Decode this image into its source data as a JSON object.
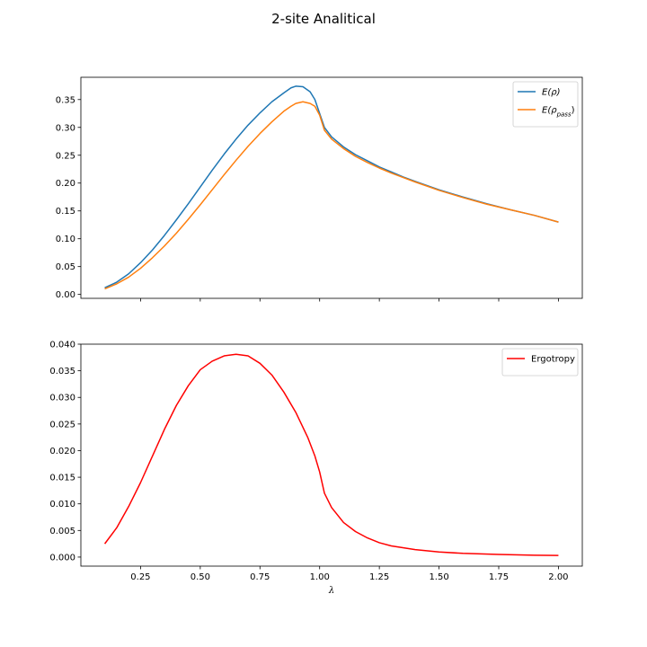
{
  "figure": {
    "title": "2-site Analitical"
  },
  "chart_data": [
    {
      "type": "line",
      "title": "",
      "xlabel": "",
      "ylabel": "",
      "xlim": [
        0.0,
        2.1
      ],
      "ylim": [
        -0.007,
        0.39
      ],
      "x_ticks": [
        0.25,
        0.5,
        0.75,
        1.0,
        1.25,
        1.5,
        1.75,
        2.0
      ],
      "x_tick_labels_visible": false,
      "y_ticks": [
        0.0,
        0.05,
        0.1,
        0.15,
        0.2,
        0.25,
        0.3,
        0.35
      ],
      "y_tick_labels": [
        "0.00",
        "0.05",
        "0.10",
        "0.15",
        "0.20",
        "0.25",
        "0.30",
        "0.35"
      ],
      "grid": false,
      "legend_position": "top-right",
      "series": [
        {
          "name": "E(ρ)",
          "legend_main": "E(ρ)",
          "legend_sub": "",
          "color": "#1f77b4",
          "points": [
            [
              0.1,
              0.012
            ],
            [
              0.15,
              0.022
            ],
            [
              0.2,
              0.037
            ],
            [
              0.25,
              0.057
            ],
            [
              0.3,
              0.08
            ],
            [
              0.35,
              0.106
            ],
            [
              0.4,
              0.134
            ],
            [
              0.45,
              0.163
            ],
            [
              0.5,
              0.193
            ],
            [
              0.55,
              0.223
            ],
            [
              0.6,
              0.252
            ],
            [
              0.65,
              0.279
            ],
            [
              0.7,
              0.304
            ],
            [
              0.75,
              0.326
            ],
            [
              0.8,
              0.346
            ],
            [
              0.85,
              0.362
            ],
            [
              0.88,
              0.371
            ],
            [
              0.9,
              0.374
            ],
            [
              0.93,
              0.373
            ],
            [
              0.96,
              0.364
            ],
            [
              0.98,
              0.35
            ],
            [
              1.0,
              0.325
            ],
            [
              1.02,
              0.3
            ],
            [
              1.05,
              0.283
            ],
            [
              1.1,
              0.265
            ],
            [
              1.15,
              0.251
            ],
            [
              1.2,
              0.24
            ],
            [
              1.25,
              0.229
            ],
            [
              1.3,
              0.22
            ],
            [
              1.35,
              0.211
            ],
            [
              1.4,
              0.203
            ],
            [
              1.5,
              0.188
            ],
            [
              1.6,
              0.175
            ],
            [
              1.7,
              0.163
            ],
            [
              1.8,
              0.152
            ],
            [
              1.9,
              0.142
            ],
            [
              2.0,
              0.13
            ]
          ]
        },
        {
          "name": "E(ρ_pass)",
          "legend_main": "E(ρ",
          "legend_sub": "pass",
          "legend_end": ")",
          "color": "#ff7f0e",
          "points": [
            [
              0.1,
              0.01
            ],
            [
              0.15,
              0.019
            ],
            [
              0.2,
              0.031
            ],
            [
              0.25,
              0.047
            ],
            [
              0.3,
              0.066
            ],
            [
              0.35,
              0.087
            ],
            [
              0.4,
              0.11
            ],
            [
              0.45,
              0.135
            ],
            [
              0.5,
              0.161
            ],
            [
              0.55,
              0.188
            ],
            [
              0.6,
              0.215
            ],
            [
              0.65,
              0.241
            ],
            [
              0.7,
              0.266
            ],
            [
              0.75,
              0.289
            ],
            [
              0.8,
              0.31
            ],
            [
              0.85,
              0.329
            ],
            [
              0.88,
              0.338
            ],
            [
              0.9,
              0.343
            ],
            [
              0.93,
              0.346
            ],
            [
              0.96,
              0.343
            ],
            [
              0.98,
              0.338
            ],
            [
              1.0,
              0.322
            ],
            [
              1.02,
              0.295
            ],
            [
              1.05,
              0.279
            ],
            [
              1.1,
              0.262
            ],
            [
              1.15,
              0.248
            ],
            [
              1.2,
              0.237
            ],
            [
              1.25,
              0.227
            ],
            [
              1.3,
              0.218
            ],
            [
              1.35,
              0.21
            ],
            [
              1.4,
              0.202
            ],
            [
              1.5,
              0.187
            ],
            [
              1.6,
              0.174
            ],
            [
              1.7,
              0.162
            ],
            [
              1.8,
              0.152
            ],
            [
              1.9,
              0.142
            ],
            [
              2.0,
              0.13
            ]
          ]
        }
      ]
    },
    {
      "type": "line",
      "title": "",
      "xlabel": "λ",
      "ylabel": "",
      "xlim": [
        0.0,
        2.1
      ],
      "ylim": [
        -0.0017,
        0.04
      ],
      "x_ticks": [
        0.25,
        0.5,
        0.75,
        1.0,
        1.25,
        1.5,
        1.75,
        2.0
      ],
      "x_tick_labels": [
        "0.25",
        "0.50",
        "0.75",
        "1.00",
        "1.25",
        "1.50",
        "1.75",
        "2.00"
      ],
      "y_ticks": [
        0.0,
        0.005,
        0.01,
        0.015,
        0.02,
        0.025,
        0.03,
        0.035,
        0.04
      ],
      "y_tick_labels": [
        "0.000",
        "0.005",
        "0.010",
        "0.015",
        "0.020",
        "0.025",
        "0.030",
        "0.035",
        "0.040"
      ],
      "grid": false,
      "legend_position": "top-right",
      "series": [
        {
          "name": "Ergotropy",
          "legend_main": "Ergotropy",
          "legend_sub": "",
          "color": "#ff0000",
          "points": [
            [
              0.1,
              0.0025
            ],
            [
              0.15,
              0.0055
            ],
            [
              0.2,
              0.0095
            ],
            [
              0.25,
              0.014
            ],
            [
              0.3,
              0.019
            ],
            [
              0.35,
              0.024
            ],
            [
              0.4,
              0.0285
            ],
            [
              0.45,
              0.0322
            ],
            [
              0.5,
              0.0352
            ],
            [
              0.55,
              0.0368
            ],
            [
              0.6,
              0.0378
            ],
            [
              0.65,
              0.0381
            ],
            [
              0.7,
              0.0378
            ],
            [
              0.75,
              0.0364
            ],
            [
              0.8,
              0.0342
            ],
            [
              0.85,
              0.031
            ],
            [
              0.9,
              0.0272
            ],
            [
              0.95,
              0.0225
            ],
            [
              0.98,
              0.019
            ],
            [
              1.0,
              0.016
            ],
            [
              1.02,
              0.012
            ],
            [
              1.05,
              0.0093
            ],
            [
              1.1,
              0.0065
            ],
            [
              1.15,
              0.0048
            ],
            [
              1.2,
              0.0036
            ],
            [
              1.25,
              0.0027
            ],
            [
              1.3,
              0.0021
            ],
            [
              1.4,
              0.0014
            ],
            [
              1.5,
              0.00095
            ],
            [
              1.6,
              0.0007
            ],
            [
              1.75,
              0.0005
            ],
            [
              1.9,
              0.00035
            ],
            [
              2.0,
              0.0003
            ]
          ]
        }
      ]
    }
  ]
}
